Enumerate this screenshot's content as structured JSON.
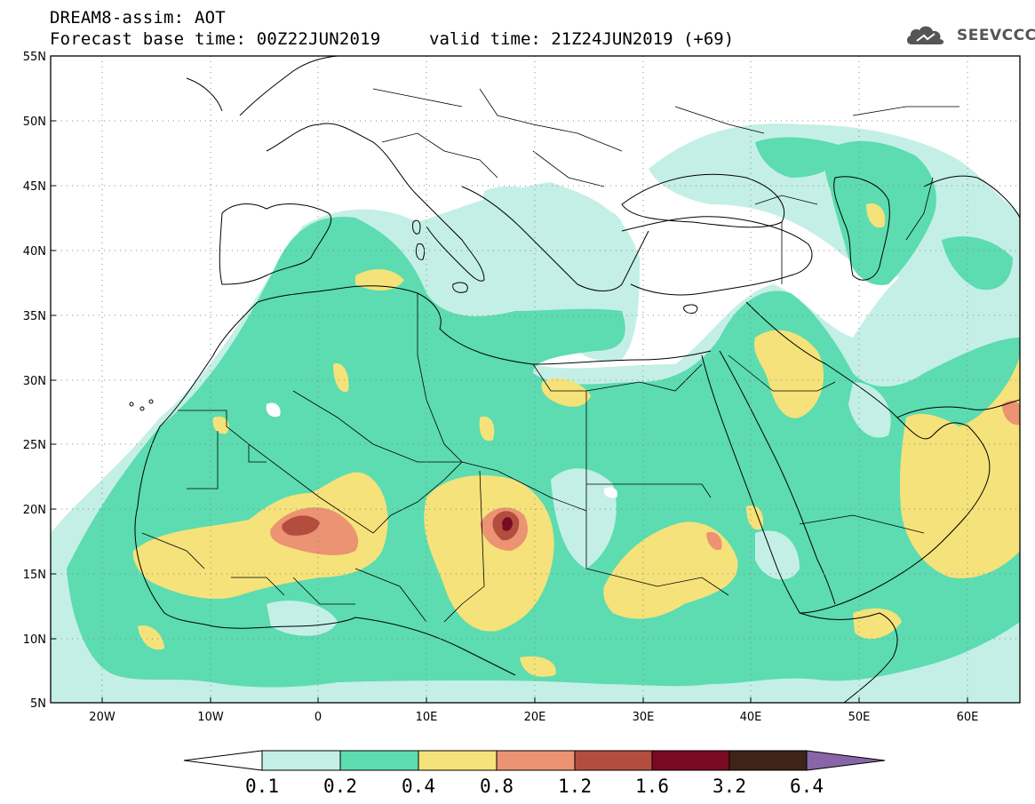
{
  "header": {
    "line1": "DREAM8-assim: AOT",
    "line2": "Forecast base time: 00Z22JUN2019",
    "valid": "valid time: 21Z24JUN2019 (+69)",
    "logo_text": "SEEVCCC"
  },
  "axes": {
    "lat_labels": [
      "55N",
      "50N",
      "45N",
      "40N",
      "35N",
      "30N",
      "25N",
      "20N",
      "15N",
      "10N",
      "5N"
    ],
    "lon_labels": [
      "20W",
      "10W",
      "0",
      "10E",
      "20E",
      "30E",
      "40E",
      "50E",
      "60E"
    ]
  },
  "colorbar": {
    "labels": [
      "0.1",
      "0.2",
      "0.4",
      "0.8",
      "1.2",
      "1.6",
      "3.2",
      "6.4"
    ],
    "colors": [
      "#ffffff",
      "#c4efe6",
      "#5cdcb0",
      "#f5e27a",
      "#eb9372",
      "#b34d3e",
      "#7a0a23",
      "#3e2418",
      "#8865a8"
    ]
  }
}
